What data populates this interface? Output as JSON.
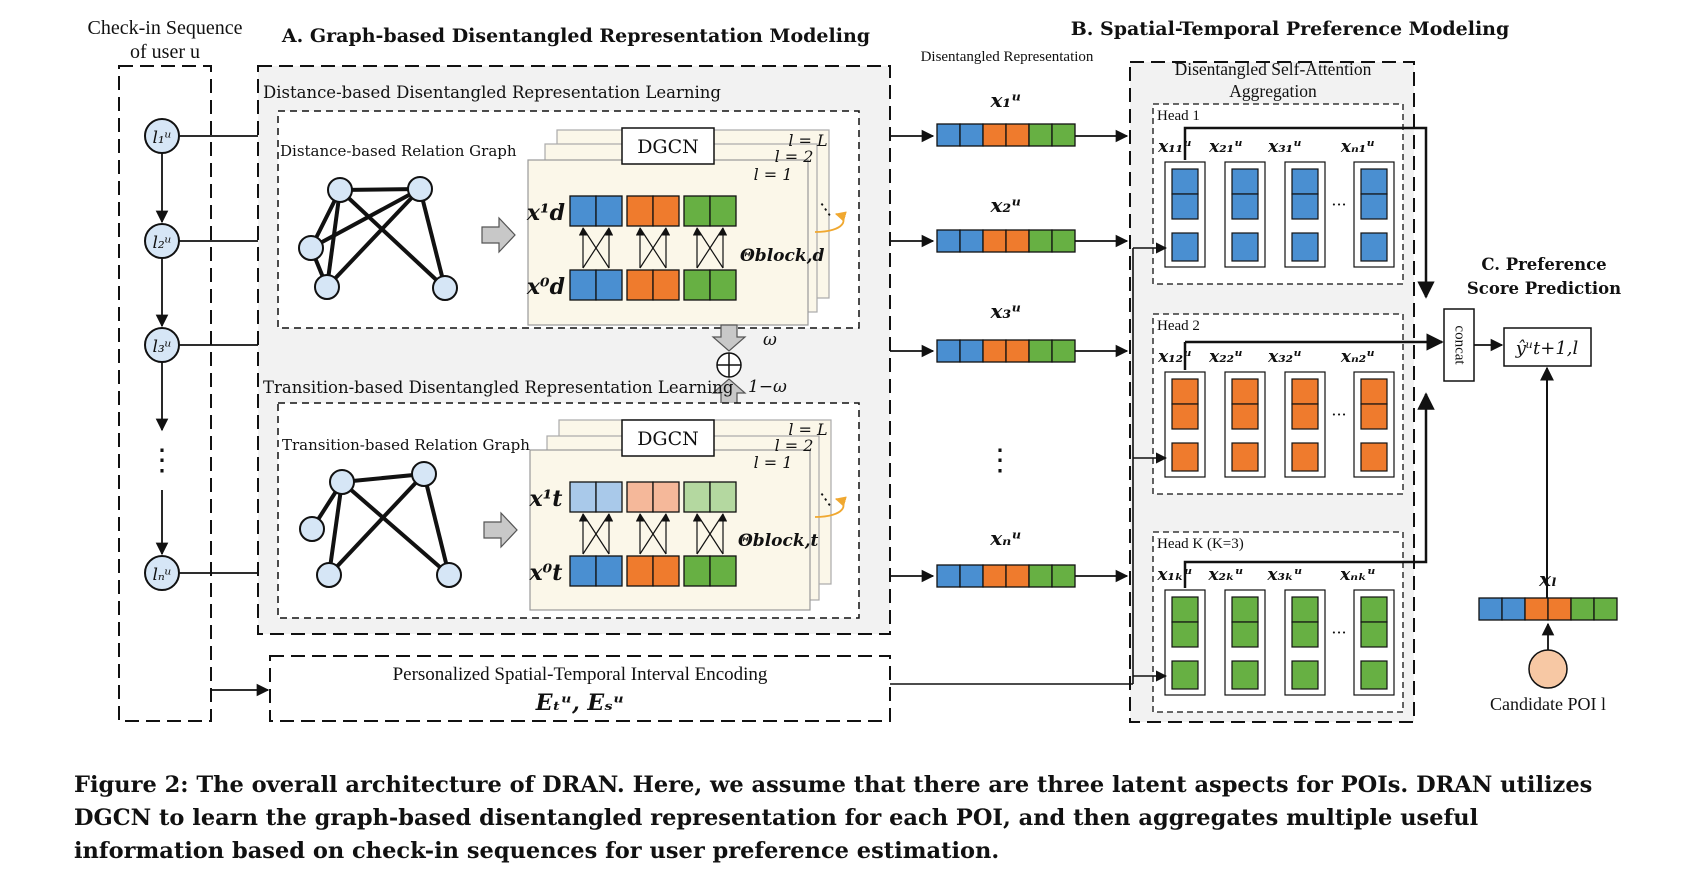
{
  "colors": {
    "aspect1": "#4a8fd1",
    "aspect2": "#ef7b2d",
    "aspect3": "#67b043",
    "aspect1_light": "#a9c9ea",
    "aspect2_light": "#f5b89a",
    "aspect3_light": "#b4d8a0",
    "node_fill": "#d6e6f6",
    "candidate_fill": "#f7c8a4",
    "panel_bg": "#f2f2f2",
    "dgcn_card": "#fbf7e9",
    "self_loop": "#f0a830"
  },
  "sequence": {
    "title_line1": "Check-in Sequence",
    "title_line2": "of user u",
    "nodes": [
      "l₁ᵘ",
      "l₂ᵘ",
      "l₃ᵘ",
      "lₙᵘ"
    ],
    "ellipsis": "⋮"
  },
  "section_a": {
    "title": "A. Graph-based Disentangled Representation Modeling",
    "distance": {
      "panel_label": "Distance-based Disentangled Representation Learning",
      "graph_label": "Distance-based Relation Graph",
      "dgcn": "DGCN",
      "layer_L": "l = L",
      "layer_2": "l = 2",
      "layer_1": "l = 1",
      "row_top": "x¹d",
      "row_bottom": "x⁰d",
      "theta": "Θblock,d"
    },
    "combine": {
      "omega": "ω",
      "one_minus_omega": "1−ω",
      "oplus": "⊕"
    },
    "transition": {
      "panel_label": "Transition-based Disentangled Representation Learning",
      "graph_label": "Transition-based Relation Graph",
      "dgcn": "DGCN",
      "layer_L": "l = L",
      "layer_2": "l = 2",
      "layer_1": "l = 1",
      "row_top": "x¹t",
      "row_bottom": "x⁰t",
      "theta": "Θblock,t"
    }
  },
  "interval_encoding": {
    "label": "Personalized Spatial-Temporal Interval Encoding",
    "formula": "Eₜᵘ, Eₛᵘ"
  },
  "disentangled": {
    "header": "Disentangled Representation",
    "vectors": [
      "x₁ᵘ",
      "x₂ᵘ",
      "x₃ᵘ",
      "xₙᵘ"
    ],
    "ellipsis": "⋮"
  },
  "section_b": {
    "title": "B. Spatial-Temporal Preference Modeling",
    "aggregation_line1": "Disentangled Self-Attention",
    "aggregation_line2": "Aggregation",
    "heads": [
      {
        "label": "Head 1",
        "tokens": [
          "x₁₁ᵘ",
          "x₂₁ᵘ",
          "x₃₁ᵘ",
          "xₙ₁ᵘ"
        ]
      },
      {
        "label": "Head 2",
        "tokens": [
          "x₁₂ᵘ",
          "x₂₂ᵘ",
          "x₃₂ᵘ",
          "xₙ₂ᵘ"
        ]
      },
      {
        "label": "Head K (K=3)",
        "tokens": [
          "x₁ₖᵘ",
          "x₂ₖᵘ",
          "x₃ₖᵘ",
          "xₙₖᵘ"
        ]
      }
    ],
    "dots": "···"
  },
  "section_c": {
    "title_line1": "C. Preference",
    "title_line2": "Score Prediction",
    "concat": "concat",
    "output": "ŷᵘt+1,l",
    "candidate_vector": "xₗ",
    "candidate_label": "Candidate POI l"
  },
  "caption": "Figure 2: The overall architecture of DRAN. Here, we assume that there are three latent aspects for POIs. DRAN utilizes DGCN to learn the graph-based disentangled representation for each POI, and then aggregates multiple useful information based on check-in sequences for user preference estimation."
}
